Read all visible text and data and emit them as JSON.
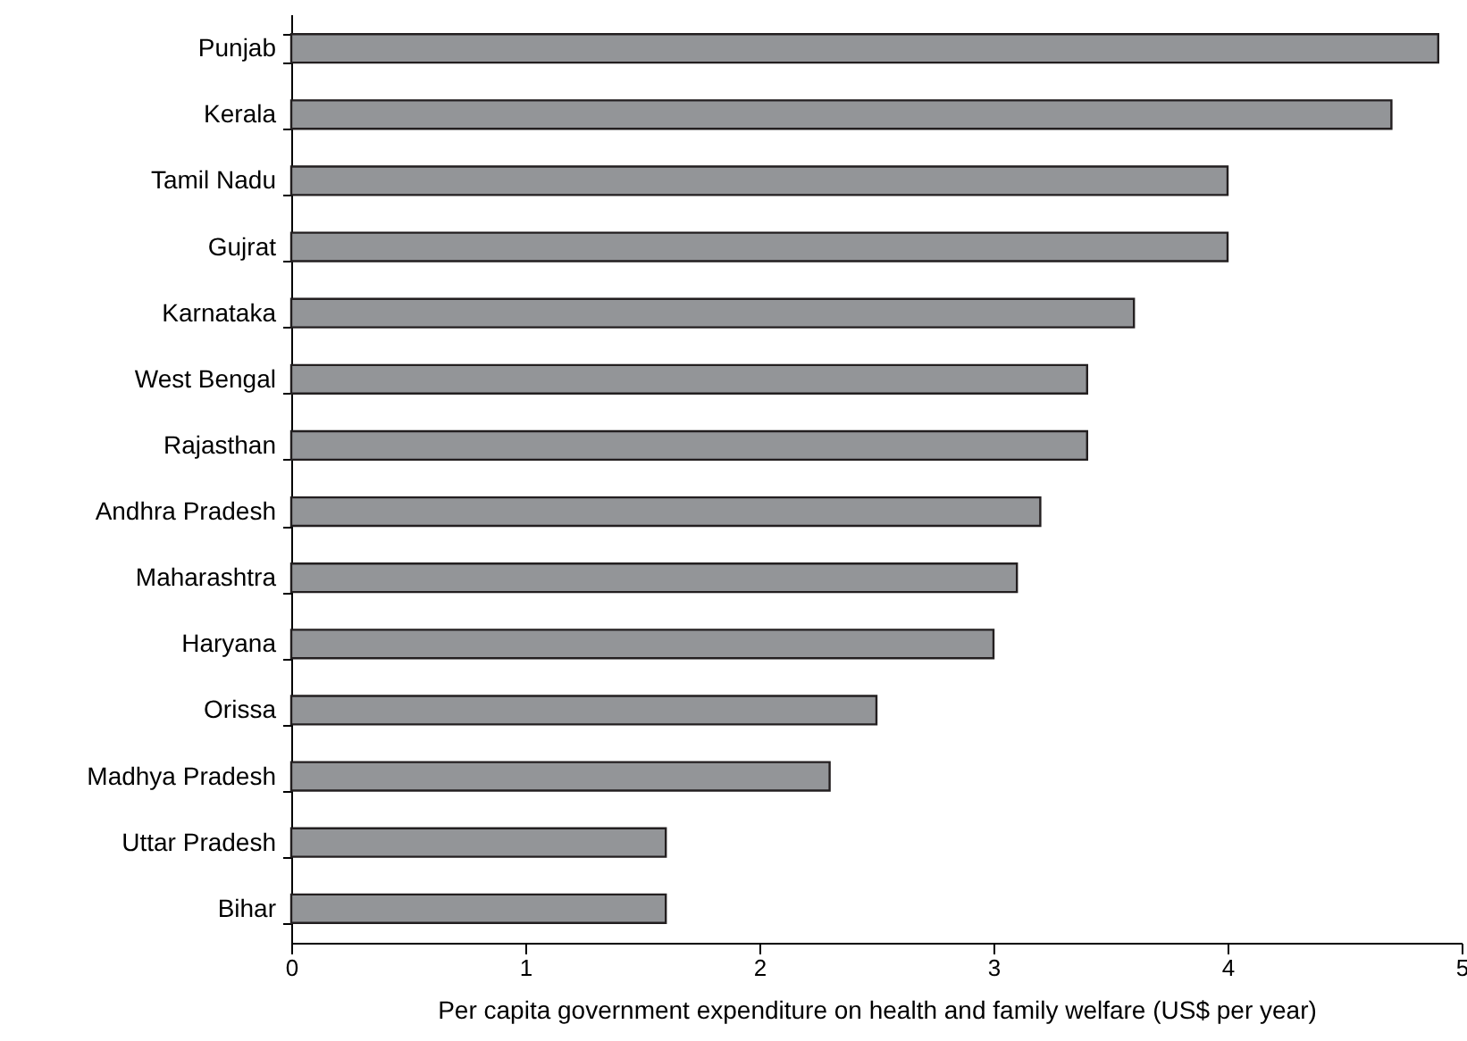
{
  "chart_data": {
    "type": "bar",
    "orientation": "horizontal",
    "xlabel": "Per capita government expenditure on health and family welfare (US$ per year)",
    "categories": [
      "Punjab",
      "Kerala",
      "Tamil Nadu",
      "Gujrat",
      "Karnataka",
      "West Bengal",
      "Rajasthan",
      "Andhra Pradesh",
      "Maharashtra",
      "Haryana",
      "Orissa",
      "Madhya Pradesh",
      "Uttar Pradesh",
      "Bihar"
    ],
    "values": [
      4.9,
      4.7,
      4.0,
      4.0,
      3.6,
      3.4,
      3.4,
      3.2,
      3.1,
      3.0,
      2.5,
      2.3,
      1.6,
      1.6
    ],
    "color": "#939598",
    "xlim": [
      0,
      5
    ],
    "xticks": [
      0,
      1,
      2,
      3,
      4,
      5
    ],
    "grid": false
  }
}
